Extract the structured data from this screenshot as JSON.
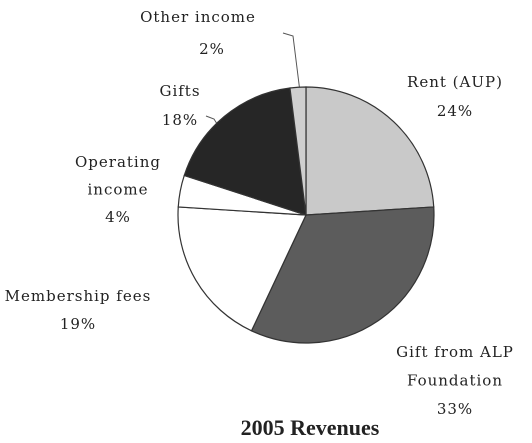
{
  "chart_data": {
    "type": "pie",
    "title": "2005 Revenues",
    "categories": [
      "Rent (AUP)",
      "Gift from ALP Foundation",
      "Membership fees",
      "Operating income",
      "Gifts",
      "Other income"
    ],
    "values": [
      24,
      33,
      19,
      4,
      18,
      2
    ],
    "value_labels": [
      "24%",
      "33%",
      "19%",
      "4%",
      "18%",
      "2%"
    ],
    "colors": [
      "#c9c9c9",
      "#5c5c5c",
      "#ffffff",
      "#ffffff",
      "#262626",
      "#cfcfcf"
    ]
  }
}
